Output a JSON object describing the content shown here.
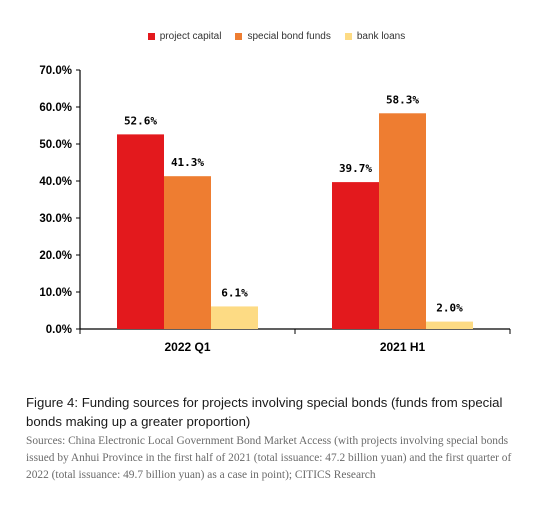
{
  "chart_data": {
    "type": "bar",
    "categories": [
      "2022 Q1",
      "2021 H1"
    ],
    "series": [
      {
        "name": "project capital",
        "values": [
          52.6,
          39.7
        ],
        "labels": [
          "52.6%",
          "39.7%"
        ],
        "color": "#e3191d"
      },
      {
        "name": "special bond funds",
        "values": [
          41.3,
          58.3
        ],
        "labels": [
          "41.3%",
          "58.3%"
        ],
        "color": "#ee7d31"
      },
      {
        "name": "bank loans",
        "values": [
          6.1,
          2.0
        ],
        "labels": [
          "6.1%",
          "2.0%"
        ],
        "color": "#fddb84"
      }
    ],
    "ylim": [
      0,
      70
    ],
    "yticks": [
      "0.0%",
      "10.0%",
      "20.0%",
      "30.0%",
      "40.0%",
      "50.0%",
      "60.0%",
      "70.0%"
    ],
    "legend_position": "top-center",
    "grid": false
  },
  "caption": {
    "title": "Figure 4: Funding sources for projects involving special bonds (funds from special bonds making up a greater proportion)",
    "source": "Sources: China Electronic Local Government Bond Market Access (with projects involving special bonds issued by Anhui Province in the first half of 2021 (total issuance: 47.2 billion yuan) and the first quarter of 2022 (total issuance: 49.7 billion yuan) as a case in point); CITICS Research"
  }
}
